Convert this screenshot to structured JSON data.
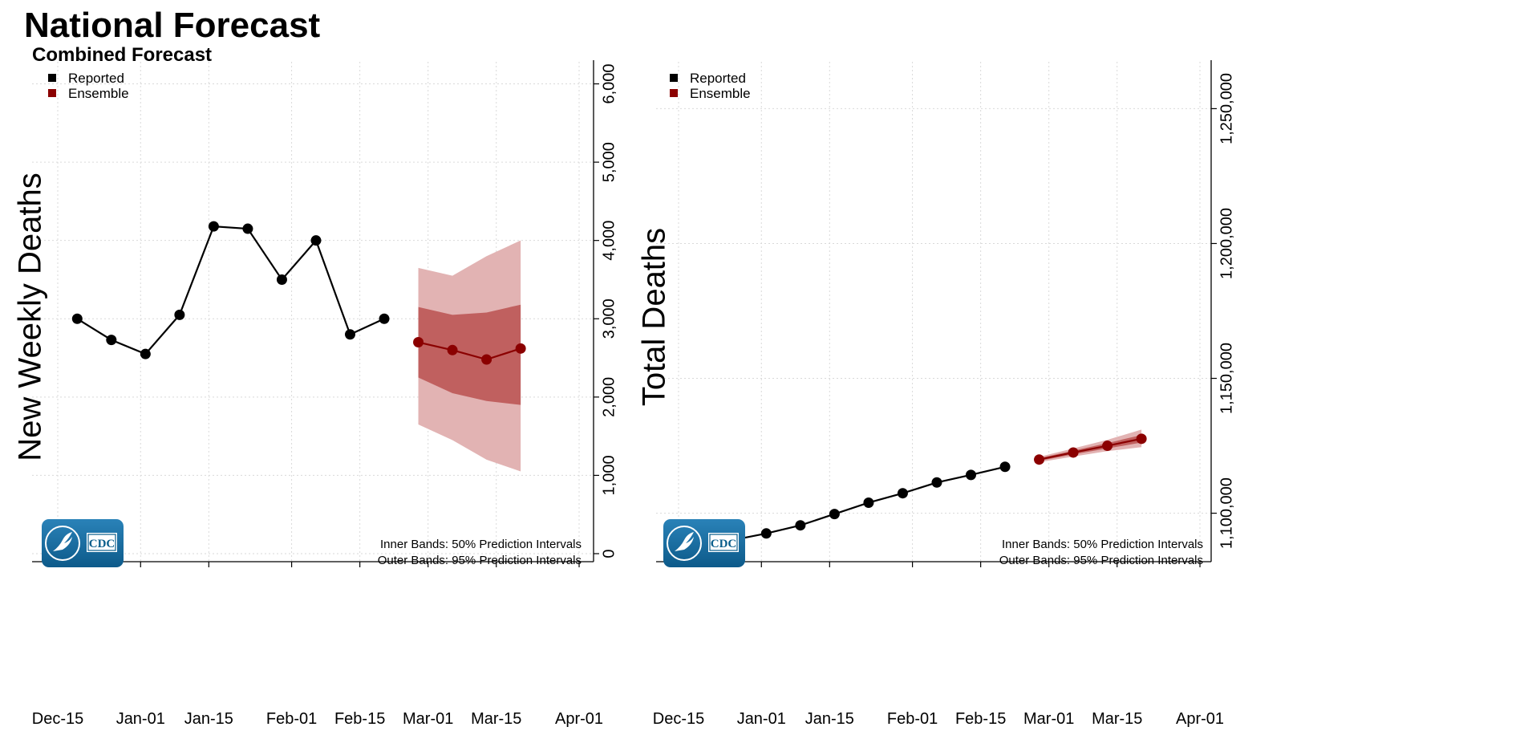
{
  "title": "National Forecast",
  "subtitle": "Combined Forecast",
  "colors": {
    "reported": "#000000",
    "ensemble": "#8b0000",
    "inner_band": "#c0605f",
    "outer_band": "#e2b3b3",
    "cdc_blue": "#1a6ea0"
  },
  "chart_data": [
    {
      "type": "line",
      "ylabel": "New Weekly Deaths",
      "xlabel": "",
      "x_ticks": [
        "Dec-15",
        "Jan-01",
        "Jan-15",
        "Feb-01",
        "Feb-15",
        "Mar-01",
        "Mar-15",
        "Apr-01"
      ],
      "y_ticks": [
        "0",
        "1,000",
        "2,000",
        "3,000",
        "4,000",
        "5,000",
        "6,000"
      ],
      "ylim": [
        0,
        6200
      ],
      "grid": true,
      "legend": {
        "placement": "top-left",
        "entries": [
          "Reported",
          "Ensemble"
        ]
      },
      "series": [
        {
          "name": "Reported",
          "x": [
            "2020-12-19",
            "2020-12-26",
            "2021-01-02",
            "2021-01-09",
            "2021-01-16",
            "2021-01-23",
            "2021-01-30",
            "2021-02-06",
            "2021-02-13",
            "2021-02-20"
          ],
          "values": [
            3000,
            2730,
            2550,
            3050,
            4180,
            4150,
            3500,
            4000,
            2800,
            3000
          ]
        },
        {
          "name": "Ensemble",
          "x": [
            "2021-02-27",
            "2021-03-06",
            "2021-03-13",
            "2021-03-20"
          ],
          "values": [
            2700,
            2600,
            2480,
            2620
          ],
          "inner_band": {
            "lower": [
              2250,
              2050,
              1950,
              1900
            ],
            "upper": [
              3150,
              3050,
              3080,
              3180
            ]
          },
          "outer_band": {
            "lower": [
              1650,
              1450,
              1200,
              1050
            ],
            "upper": [
              3650,
              3550,
              3800,
              4000
            ]
          }
        }
      ],
      "annotations": [
        "Inner Bands: 50% Prediction Intervals",
        "Outer Bands: 95% Prediction Intervals"
      ]
    },
    {
      "type": "line",
      "ylabel": "Total Deaths",
      "xlabel": "",
      "x_ticks": [
        "Dec-15",
        "Jan-01",
        "Jan-15",
        "Feb-01",
        "Feb-15",
        "Mar-01",
        "Mar-15",
        "Apr-01"
      ],
      "y_ticks": [
        "1,100,000",
        "1,150,000",
        "1,200,000",
        "1,250,000"
      ],
      "ylim": [
        1085000,
        1265000
      ],
      "grid": true,
      "legend": {
        "placement": "top-left",
        "entries": [
          "Reported",
          "Ensemble"
        ]
      },
      "series": [
        {
          "name": "Reported",
          "x": [
            "2020-12-19",
            "2020-12-26",
            "2021-01-02",
            "2021-01-09",
            "2021-01-16",
            "2021-01-23",
            "2021-01-30",
            "2021-02-06",
            "2021-02-13",
            "2021-02-20"
          ],
          "values": [
            1087000,
            1090000,
            1092500,
            1095500,
            1099700,
            1103900,
            1107400,
            1111400,
            1114200,
            1117200
          ]
        },
        {
          "name": "Ensemble",
          "x": [
            "2021-02-27",
            "2021-03-06",
            "2021-03-13",
            "2021-03-20"
          ],
          "values": [
            1119900,
            1122500,
            1125000,
            1127600
          ],
          "inner_band": {
            "lower": [
              1119400,
              1121800,
              1124000,
              1126200
            ],
            "upper": [
              1120400,
              1123200,
              1126000,
              1129000
            ]
          },
          "outer_band": {
            "lower": [
              1118900,
              1121000,
              1123000,
              1124500
            ],
            "upper": [
              1120900,
              1124000,
              1127200,
              1131000
            ]
          }
        }
      ],
      "annotations": [
        "Inner Bands: 50% Prediction Intervals",
        "Outer Bands: 95% Prediction Intervals"
      ]
    }
  ],
  "logo": {
    "text": "CDC"
  }
}
